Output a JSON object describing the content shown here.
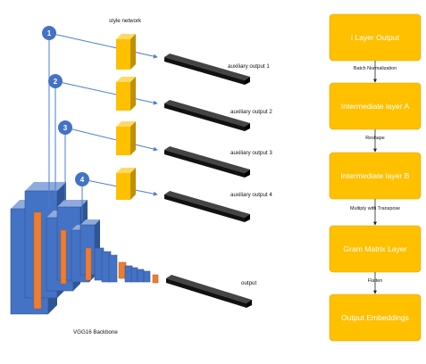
{
  "network": {
    "style_network_label": "style network",
    "backbone_label": "VGG16 Backbone",
    "taps": [
      {
        "number": "1",
        "aux_label": "auxiliary output 1"
      },
      {
        "number": "2",
        "aux_label": "auxiliary output 2"
      },
      {
        "number": "3",
        "aux_label": "auxiliary output 3"
      },
      {
        "number": "4",
        "aux_label": "auxiliary output 4"
      }
    ],
    "final_output_label": "output"
  },
  "pipeline": {
    "boxes": [
      "i Layer Output",
      "Intermediate layer A",
      "Intermediate layer B",
      "Gram Matrix Layer",
      "Output Embeddings"
    ],
    "edges": [
      "Batch Normalization",
      "Reshape",
      "Multiply with Transpose",
      "Flatten"
    ]
  },
  "colors": {
    "blue": "#4472C4",
    "orange": "#ED7D31",
    "yellow": "#FFC000",
    "dark": "#111111"
  }
}
